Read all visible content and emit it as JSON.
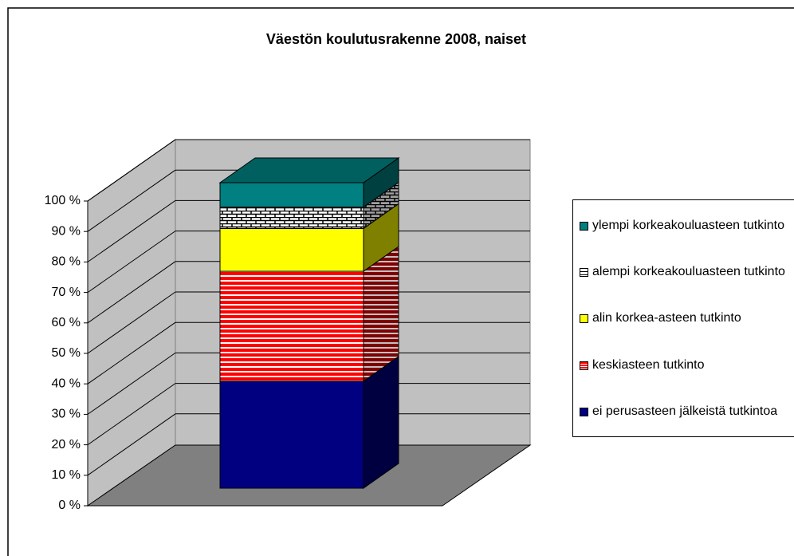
{
  "chart_data": {
    "type": "stacked_bar_3d",
    "title": "Väestön koulutusrakenne 2008, naiset",
    "categories": [
      null
    ],
    "series": [
      {
        "name": "ei perusasteen jälkeistä tutkintoa",
        "color": "#000080",
        "values": [
          35
        ]
      },
      {
        "name": "keskiasteen tutkinto",
        "color": "#ff0000",
        "values": [
          36
        ]
      },
      {
        "name": "alin korkea-asteen tutkinto",
        "color": "#ffff00",
        "values": [
          14
        ]
      },
      {
        "name": "alempi korkeakouluasteen tutkinto",
        "color": "#ffffff",
        "values": [
          7
        ]
      },
      {
        "name": "ylempi korkeakouluasteen tutkinto",
        "color": "#008080",
        "values": [
          8
        ]
      }
    ],
    "ylim": [
      0,
      100
    ],
    "yticks": [
      {
        "value": 0,
        "label": "0 %"
      },
      {
        "value": 10,
        "label": "10 %"
      },
      {
        "value": 20,
        "label": "20 %"
      },
      {
        "value": 30,
        "label": "30 %"
      },
      {
        "value": 40,
        "label": "40 %"
      },
      {
        "value": 50,
        "label": "50 %"
      },
      {
        "value": 60,
        "label": "60 %"
      },
      {
        "value": 70,
        "label": "70 %"
      },
      {
        "value": 80,
        "label": "80 %"
      },
      {
        "value": 90,
        "label": "90 %"
      },
      {
        "value": 100,
        "label": "100 %"
      }
    ],
    "grid": true,
    "legend": "right"
  }
}
